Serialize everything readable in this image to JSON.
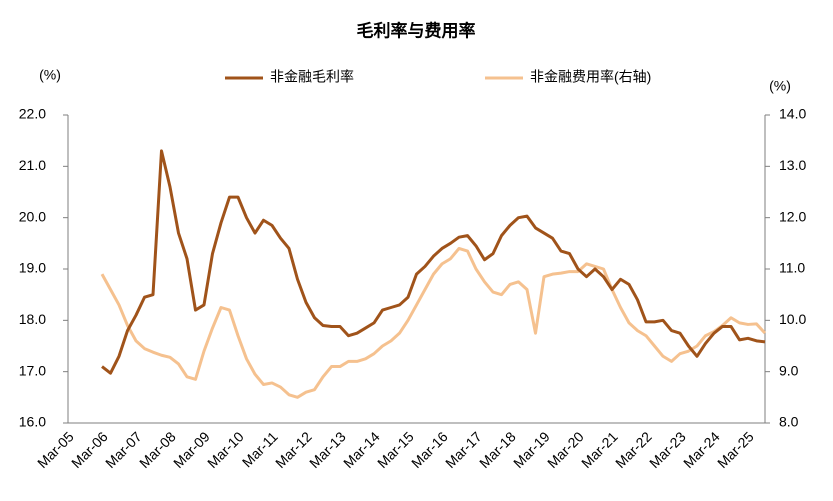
{
  "chart_data": {
    "type": "line",
    "title": "毛利率与费用率",
    "y_unit": "(%)",
    "y2_unit": "(%)",
    "legend": "top",
    "categories": [
      "Mar-05",
      null,
      null,
      null,
      "Mar-06",
      null,
      null,
      null,
      "Mar-07",
      null,
      null,
      null,
      "Mar-08",
      null,
      null,
      null,
      "Mar-09",
      null,
      null,
      null,
      "Mar-10",
      null,
      null,
      null,
      "Mar-11",
      null,
      null,
      null,
      "Mar-12",
      null,
      null,
      null,
      "Mar-13",
      null,
      null,
      null,
      "Mar-14",
      null,
      null,
      null,
      "Mar-15",
      null,
      null,
      null,
      "Mar-16",
      null,
      null,
      null,
      "Mar-17",
      null,
      null,
      null,
      "Mar-18",
      null,
      null,
      null,
      "Mar-19",
      null,
      null,
      null,
      "Mar-20",
      null,
      null,
      null,
      "Mar-21",
      null,
      null,
      null,
      "Mar-22",
      null,
      null,
      null,
      "Mar-23",
      null,
      null,
      null,
      "Mar-24",
      null,
      null,
      null,
      "Mar-25",
      null,
      null
    ],
    "ylim": [
      16,
      22
    ],
    "yticks": [
      {
        "value": 16,
        "label": "16.0"
      },
      {
        "value": 17,
        "label": "17.0"
      },
      {
        "value": 18,
        "label": "18.0"
      },
      {
        "value": 19,
        "label": "19.0"
      },
      {
        "value": 20,
        "label": "20.0"
      },
      {
        "value": 21,
        "label": "21.0"
      },
      {
        "value": 22,
        "label": "22.0"
      }
    ],
    "y2lim": [
      8,
      14
    ],
    "y2ticks": [
      {
        "value": 8,
        "label": "8.0"
      },
      {
        "value": 9,
        "label": "9.0"
      },
      {
        "value": 10,
        "label": "10.0"
      },
      {
        "value": 11,
        "label": "11.0"
      },
      {
        "value": 12,
        "label": "12.0"
      },
      {
        "value": 13,
        "label": "13.0"
      },
      {
        "value": 14,
        "label": "14.0"
      }
    ],
    "series": [
      {
        "name": "非金融毛利率",
        "color": "#a0531a",
        "values": [
          null,
          null,
          null,
          null,
          17.1,
          16.97,
          17.3,
          17.8,
          18.1,
          18.45,
          18.5,
          21.3,
          20.6,
          19.7,
          19.2,
          18.2,
          18.3,
          19.3,
          19.9,
          20.4,
          20.4,
          20.0,
          19.7,
          19.95,
          19.85,
          19.6,
          19.4,
          18.8,
          18.35,
          18.05,
          17.9,
          17.88,
          17.88,
          17.7,
          17.75,
          17.85,
          17.95,
          18.2,
          18.25,
          18.3,
          18.45,
          18.9,
          19.05,
          19.25,
          19.4,
          19.5,
          19.62,
          19.65,
          19.45,
          19.18,
          19.3,
          19.65,
          19.85,
          20.0,
          20.03,
          19.8,
          19.7,
          19.6,
          19.35,
          19.3,
          19.0,
          18.85,
          19.0,
          18.85,
          18.6,
          18.8,
          18.7,
          18.4,
          17.97,
          17.97,
          18.0,
          17.8,
          17.75,
          17.5,
          17.3,
          17.55,
          17.75,
          17.88,
          17.88,
          17.62,
          17.65,
          17.6,
          17.58
        ]
      },
      {
        "name": "非金融费用率(右轴)",
        "color": "#f5c18f",
        "axis": "y2",
        "values": [
          null,
          null,
          null,
          null,
          10.9,
          10.6,
          10.3,
          9.9,
          9.6,
          9.45,
          9.38,
          9.32,
          9.28,
          9.15,
          8.9,
          8.85,
          9.4,
          9.85,
          10.25,
          10.2,
          9.7,
          9.25,
          8.95,
          8.75,
          8.78,
          8.7,
          8.55,
          8.5,
          8.6,
          8.65,
          8.9,
          9.1,
          9.1,
          9.2,
          9.2,
          9.25,
          9.35,
          9.5,
          9.6,
          9.75,
          10.0,
          10.3,
          10.6,
          10.9,
          11.1,
          11.2,
          11.4,
          11.35,
          11.0,
          10.75,
          10.55,
          10.5,
          10.7,
          10.75,
          10.6,
          9.75,
          10.85,
          10.9,
          10.92,
          10.95,
          10.95,
          11.1,
          11.05,
          11.0,
          10.6,
          10.25,
          9.95,
          9.8,
          9.7,
          9.5,
          9.3,
          9.2,
          9.35,
          9.4,
          9.5,
          9.7,
          9.78,
          9.9,
          10.05,
          9.95,
          9.92,
          9.93,
          9.75
        ]
      }
    ]
  }
}
